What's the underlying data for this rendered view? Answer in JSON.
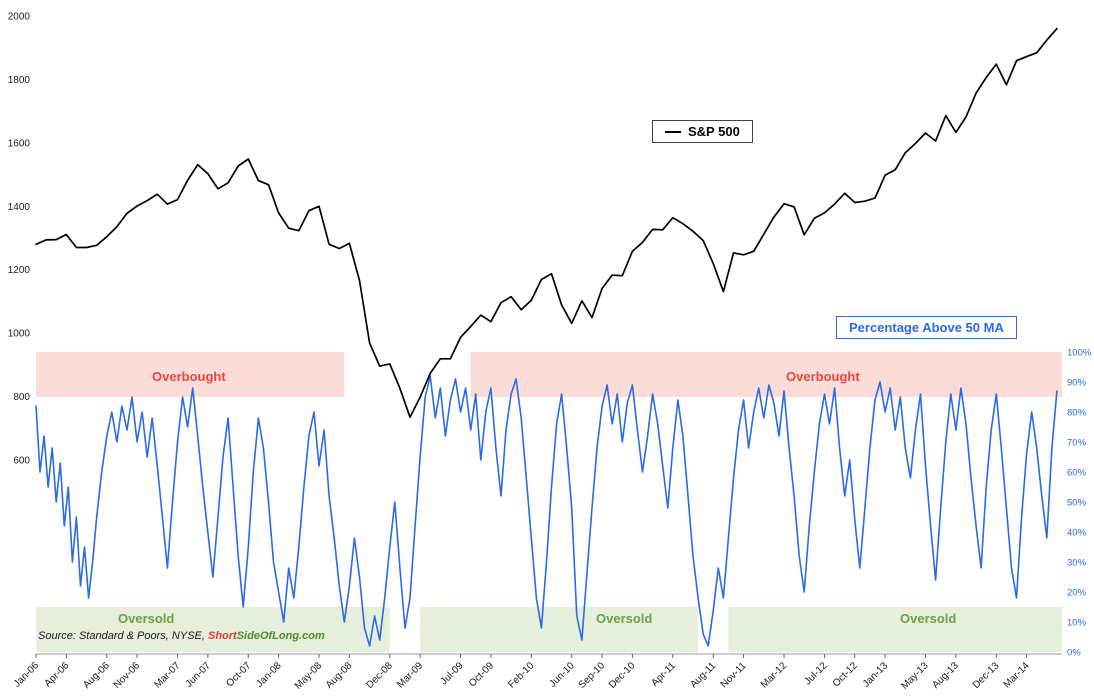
{
  "colors": {
    "price_line": "#000000",
    "pct_line": "#2b6be4",
    "overbought_fill": "#fcdcd8",
    "oversold_fill": "#e5efdb",
    "overbought_text": "#e8473c",
    "oversold_text": "#6f9e44",
    "axis_text": "#1a1a1a",
    "right_axis_text": "#2b6be4"
  },
  "legend": {
    "sp500_label": "S&P 500"
  },
  "pct_label_box": {
    "text": "Percentage Above 50 MA"
  },
  "source": {
    "prefix": "Source: Standard & Poors, NYSE, ",
    "brand_red": "Short",
    "brand_green": "SideOfLong.com"
  },
  "chart_data": {
    "type": "line",
    "title": "",
    "x_unit": "months since Jan-2006",
    "x_range": [
      0,
      101.5
    ],
    "grid": false,
    "left_axis": {
      "name": "S&P 500 price",
      "min": 600,
      "max": 2000,
      "ticks": [
        600,
        800,
        1000,
        1200,
        1400,
        1600,
        1800,
        2000
      ]
    },
    "right_axis": {
      "label": "Percentage Above 50 MA",
      "min": 0,
      "max": 100,
      "ticks": [
        0,
        10,
        20,
        30,
        40,
        50,
        60,
        70,
        80,
        90,
        100
      ],
      "suffix": "%"
    },
    "x_ticks": [
      [
        0,
        "Jan-06"
      ],
      [
        3,
        "Apr-06"
      ],
      [
        7,
        "Aug-06"
      ],
      [
        10,
        "Nov-06"
      ],
      [
        14,
        "Mar-07"
      ],
      [
        17,
        "Jun-07"
      ],
      [
        21,
        "Oct-07"
      ],
      [
        24,
        "Jan-08"
      ],
      [
        28,
        "May-08"
      ],
      [
        31,
        "Aug-08"
      ],
      [
        35,
        "Dec-08"
      ],
      [
        38,
        "Mar-09"
      ],
      [
        42,
        "Jul-09"
      ],
      [
        45,
        "Oct-09"
      ],
      [
        49,
        "Feb-10"
      ],
      [
        53,
        "Jun-10"
      ],
      [
        56,
        "Sep-10"
      ],
      [
        59,
        "Dec-10"
      ],
      [
        63,
        "Apr-11"
      ],
      [
        67,
        "Aug-11"
      ],
      [
        70,
        "Nov-11"
      ],
      [
        74,
        "Mar-12"
      ],
      [
        78,
        "Jul-12"
      ],
      [
        81,
        "Oct-12"
      ],
      [
        84,
        "Jan-13"
      ],
      [
        88,
        "May-13"
      ],
      [
        91,
        "Aug-13"
      ],
      [
        95,
        "Dec-13"
      ],
      [
        98,
        "Mar-14"
      ]
    ],
    "bands": [
      {
        "type": "overbought",
        "label": "Overbought",
        "x": [
          0,
          30.5
        ],
        "pct": [
          85,
          100
        ]
      },
      {
        "type": "overbought",
        "label": "Overbought",
        "x": [
          43,
          101.5
        ],
        "pct": [
          85,
          100
        ]
      },
      {
        "type": "oversold",
        "label": "Oversold",
        "x": [
          0,
          35
        ],
        "pct": [
          0,
          15
        ]
      },
      {
        "type": "oversold",
        "label": "Oversold",
        "x": [
          38,
          65.5
        ],
        "pct": [
          0,
          15
        ]
      },
      {
        "type": "oversold",
        "label": "Oversold",
        "x": [
          68.5,
          101.5
        ],
        "pct": [
          0,
          15
        ]
      }
    ],
    "series": [
      {
        "name": "S&P 500",
        "axis": "left",
        "color": "#000000",
        "x_start": 0,
        "x_step": 1,
        "values": [
          1280,
          1294,
          1295,
          1311,
          1270,
          1270,
          1277,
          1304,
          1336,
          1378,
          1401,
          1418,
          1438,
          1407,
          1421,
          1482,
          1531,
          1503,
          1455,
          1474,
          1527,
          1549,
          1481,
          1468,
          1379,
          1331,
          1323,
          1386,
          1400,
          1280,
          1267,
          1283,
          1166,
          969,
          896,
          903,
          826,
          735,
          798,
          873,
          919,
          919,
          987,
          1021,
          1057,
          1036,
          1096,
          1115,
          1074,
          1104,
          1169,
          1187,
          1089,
          1031,
          1102,
          1049,
          1141,
          1183,
          1181,
          1258,
          1286,
          1327,
          1326,
          1364,
          1345,
          1321,
          1292,
          1219,
          1131,
          1253,
          1247,
          1258,
          1312,
          1366,
          1408,
          1398,
          1310,
          1362,
          1379,
          1407,
          1441,
          1412,
          1416,
          1426,
          1498,
          1515,
          1569,
          1598,
          1631,
          1606,
          1686,
          1633,
          1682,
          1757,
          1806,
          1848,
          1783,
          1859,
          1872,
          1884,
          1924,
          1960
        ]
      },
      {
        "name": "Percentage Above 50 MA",
        "axis": "right",
        "color": "#2b6be4",
        "points": [
          [
            0,
            82
          ],
          [
            0.4,
            60
          ],
          [
            0.8,
            72
          ],
          [
            1.2,
            55
          ],
          [
            1.6,
            68
          ],
          [
            2,
            50
          ],
          [
            2.4,
            63
          ],
          [
            2.8,
            42
          ],
          [
            3.2,
            55
          ],
          [
            3.6,
            30
          ],
          [
            4,
            45
          ],
          [
            4.4,
            22
          ],
          [
            4.8,
            35
          ],
          [
            5.2,
            18
          ],
          [
            5.6,
            30
          ],
          [
            6,
            45
          ],
          [
            6.5,
            60
          ],
          [
            7,
            72
          ],
          [
            7.5,
            80
          ],
          [
            8,
            70
          ],
          [
            8.5,
            82
          ],
          [
            9,
            74
          ],
          [
            9.5,
            85
          ],
          [
            10,
            70
          ],
          [
            10.5,
            80
          ],
          [
            11,
            65
          ],
          [
            11.5,
            78
          ],
          [
            12,
            62
          ],
          [
            12.5,
            45
          ],
          [
            13,
            28
          ],
          [
            13.5,
            50
          ],
          [
            14,
            70
          ],
          [
            14.5,
            85
          ],
          [
            15,
            75
          ],
          [
            15.5,
            88
          ],
          [
            16,
            72
          ],
          [
            16.5,
            55
          ],
          [
            17,
            40
          ],
          [
            17.5,
            25
          ],
          [
            18,
            45
          ],
          [
            18.5,
            65
          ],
          [
            19,
            78
          ],
          [
            19.5,
            55
          ],
          [
            20,
            32
          ],
          [
            20.5,
            15
          ],
          [
            21,
            35
          ],
          [
            21.5,
            60
          ],
          [
            22,
            78
          ],
          [
            22.5,
            68
          ],
          [
            23,
            50
          ],
          [
            23.5,
            30
          ],
          [
            24,
            20
          ],
          [
            24.5,
            10
          ],
          [
            25,
            28
          ],
          [
            25.5,
            18
          ],
          [
            26,
            35
          ],
          [
            26.5,
            55
          ],
          [
            27,
            72
          ],
          [
            27.5,
            80
          ],
          [
            28,
            62
          ],
          [
            28.5,
            74
          ],
          [
            29,
            52
          ],
          [
            29.5,
            38
          ],
          [
            30,
            22
          ],
          [
            30.5,
            10
          ],
          [
            31,
            22
          ],
          [
            31.5,
            38
          ],
          [
            32,
            25
          ],
          [
            32.5,
            8
          ],
          [
            33,
            2
          ],
          [
            33.5,
            12
          ],
          [
            34,
            4
          ],
          [
            34.5,
            18
          ],
          [
            35,
            35
          ],
          [
            35.5,
            50
          ],
          [
            36,
            28
          ],
          [
            36.5,
            8
          ],
          [
            37,
            18
          ],
          [
            37.5,
            42
          ],
          [
            38,
            65
          ],
          [
            38.5,
            85
          ],
          [
            39,
            92
          ],
          [
            39.5,
            78
          ],
          [
            40,
            88
          ],
          [
            40.5,
            72
          ],
          [
            41,
            84
          ],
          [
            41.5,
            91
          ],
          [
            42,
            80
          ],
          [
            42.5,
            88
          ],
          [
            43,
            74
          ],
          [
            43.5,
            86
          ],
          [
            44,
            64
          ],
          [
            44.5,
            80
          ],
          [
            45,
            88
          ],
          [
            45.5,
            68
          ],
          [
            46,
            52
          ],
          [
            46.5,
            74
          ],
          [
            47,
            86
          ],
          [
            47.5,
            91
          ],
          [
            48,
            78
          ],
          [
            48.5,
            58
          ],
          [
            49,
            38
          ],
          [
            49.5,
            18
          ],
          [
            50,
            8
          ],
          [
            50.5,
            30
          ],
          [
            51,
            55
          ],
          [
            51.5,
            76
          ],
          [
            52,
            86
          ],
          [
            52.5,
            68
          ],
          [
            53,
            48
          ],
          [
            53.5,
            12
          ],
          [
            54,
            4
          ],
          [
            54.5,
            26
          ],
          [
            55,
            48
          ],
          [
            55.5,
            68
          ],
          [
            56,
            82
          ],
          [
            56.5,
            89
          ],
          [
            57,
            76
          ],
          [
            57.5,
            86
          ],
          [
            58,
            70
          ],
          [
            58.5,
            83
          ],
          [
            59,
            89
          ],
          [
            59.5,
            74
          ],
          [
            60,
            60
          ],
          [
            60.5,
            72
          ],
          [
            61,
            86
          ],
          [
            61.5,
            76
          ],
          [
            62,
            62
          ],
          [
            62.5,
            48
          ],
          [
            63,
            68
          ],
          [
            63.5,
            84
          ],
          [
            64,
            72
          ],
          [
            64.5,
            52
          ],
          [
            65,
            32
          ],
          [
            65.5,
            18
          ],
          [
            66,
            6
          ],
          [
            66.5,
            2
          ],
          [
            67,
            14
          ],
          [
            67.5,
            28
          ],
          [
            68,
            18
          ],
          [
            68.5,
            38
          ],
          [
            69,
            58
          ],
          [
            69.5,
            74
          ],
          [
            70,
            84
          ],
          [
            70.5,
            68
          ],
          [
            71,
            80
          ],
          [
            71.5,
            88
          ],
          [
            72,
            78
          ],
          [
            72.5,
            89
          ],
          [
            73,
            83
          ],
          [
            73.5,
            72
          ],
          [
            74,
            87
          ],
          [
            74.5,
            68
          ],
          [
            75,
            52
          ],
          [
            75.5,
            32
          ],
          [
            76,
            20
          ],
          [
            76.5,
            42
          ],
          [
            77,
            60
          ],
          [
            77.5,
            76
          ],
          [
            78,
            86
          ],
          [
            78.5,
            76
          ],
          [
            79,
            88
          ],
          [
            79.5,
            68
          ],
          [
            80,
            52
          ],
          [
            80.5,
            64
          ],
          [
            81,
            44
          ],
          [
            81.5,
            28
          ],
          [
            82,
            48
          ],
          [
            82.5,
            68
          ],
          [
            83,
            84
          ],
          [
            83.5,
            90
          ],
          [
            84,
            80
          ],
          [
            84.5,
            88
          ],
          [
            85,
            74
          ],
          [
            85.5,
            85
          ],
          [
            86,
            68
          ],
          [
            86.5,
            58
          ],
          [
            87,
            74
          ],
          [
            87.5,
            86
          ],
          [
            88,
            62
          ],
          [
            88.5,
            42
          ],
          [
            89,
            24
          ],
          [
            89.5,
            48
          ],
          [
            90,
            70
          ],
          [
            90.5,
            86
          ],
          [
            91,
            74
          ],
          [
            91.5,
            88
          ],
          [
            92,
            76
          ],
          [
            92.5,
            58
          ],
          [
            93,
            42
          ],
          [
            93.5,
            28
          ],
          [
            94,
            55
          ],
          [
            94.5,
            74
          ],
          [
            95,
            86
          ],
          [
            95.5,
            68
          ],
          [
            96,
            48
          ],
          [
            96.5,
            28
          ],
          [
            97,
            18
          ],
          [
            97.5,
            45
          ],
          [
            98,
            66
          ],
          [
            98.5,
            80
          ],
          [
            99,
            68
          ],
          [
            99.5,
            52
          ],
          [
            100,
            38
          ],
          [
            100.5,
            68
          ],
          [
            101,
            87
          ]
        ]
      }
    ]
  }
}
